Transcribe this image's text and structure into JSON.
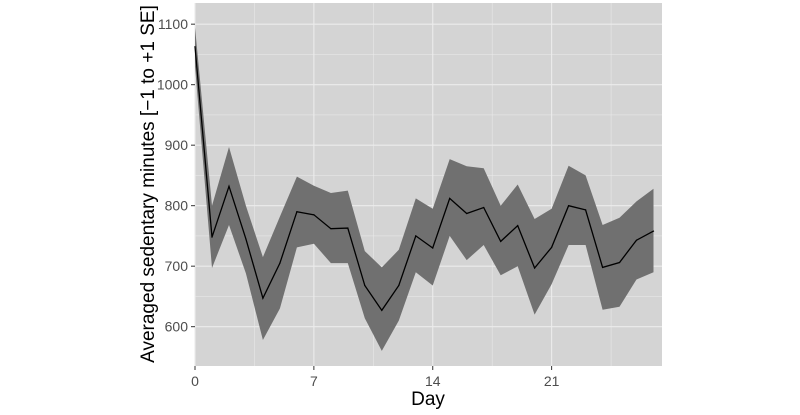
{
  "chart_data": {
    "type": "line",
    "title": "",
    "xlabel": "Day",
    "ylabel": "Averaged sedentary minutes [−1 to +1 SE]",
    "xlim": [
      0,
      27.5
    ],
    "ylim": [
      535,
      1135
    ],
    "x_ticks": [
      0,
      7,
      14,
      21
    ],
    "y_ticks": [
      600,
      700,
      800,
      900,
      1000,
      1100
    ],
    "grid": true,
    "legend": "none",
    "colors": {
      "panel": "#d4d4d4",
      "grid": "#ececec",
      "ribbon": "#707070",
      "line": "#000000"
    },
    "series": [
      {
        "x": [
          0,
          1,
          2,
          3,
          4,
          5,
          6,
          7,
          8,
          9,
          10,
          11,
          12,
          13,
          14,
          15,
          16,
          17,
          18,
          19,
          20,
          21,
          22,
          23,
          24,
          25,
          26,
          27
        ],
        "y": [
          1063,
          748,
          832,
          745,
          647,
          705,
          790,
          785,
          762,
          763,
          668,
          627,
          668,
          750,
          730,
          812,
          787,
          797,
          741,
          767,
          697,
          731,
          800,
          793,
          698,
          706,
          743,
          758
        ],
        "lower": [
          1030,
          697,
          768,
          688,
          578,
          630,
          731,
          737,
          705,
          705,
          614,
          560,
          610,
          690,
          668,
          750,
          710,
          735,
          685,
          700,
          620,
          670,
          735,
          735,
          628,
          633,
          678,
          690
        ],
        "upper": [
          1095,
          800,
          897,
          800,
          715,
          782,
          848,
          833,
          821,
          825,
          725,
          698,
          727,
          812,
          795,
          877,
          865,
          862,
          800,
          835,
          778,
          795,
          866,
          850,
          768,
          780,
          807,
          828
        ]
      }
    ]
  }
}
